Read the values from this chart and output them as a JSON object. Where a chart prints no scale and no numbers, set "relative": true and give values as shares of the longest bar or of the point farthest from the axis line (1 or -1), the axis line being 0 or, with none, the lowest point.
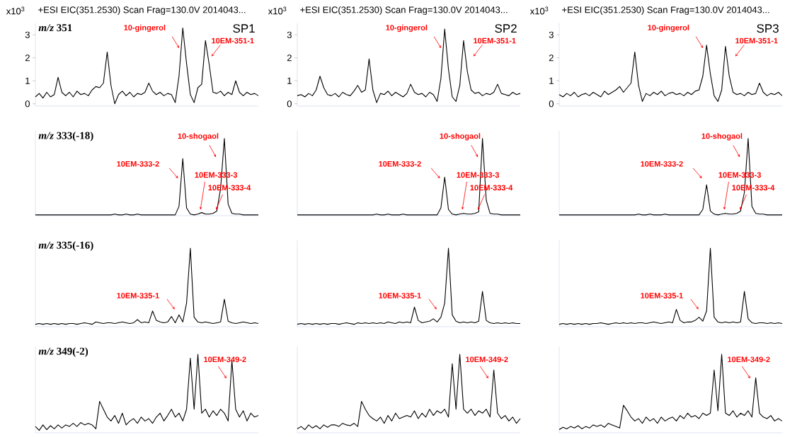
{
  "chart_data": [
    {
      "type": "line",
      "title": "+ESI EIC(351.2530) Scan Frag=130.0V 2014043...",
      "ylabel": "x10$^{3}$",
      "categories": [
        null,
        null,
        null,
        null,
        null,
        null,
        null,
        null,
        null,
        null,
        null,
        null,
        null,
        null,
        null,
        null,
        null,
        null,
        null,
        null,
        null,
        null,
        null,
        null,
        null,
        null,
        null,
        null,
        null,
        null,
        null,
        null,
        null,
        null,
        null,
        null,
        null,
        null,
        null,
        null,
        null,
        null,
        null,
        null,
        null,
        null,
        null,
        null,
        null,
        null,
        null,
        null,
        null,
        null,
        null,
        null,
        null,
        null,
        null,
        null
      ],
      "values": [
        0.3,
        0.45,
        0.25,
        0.5,
        0.3,
        0.4,
        1.15,
        0.5,
        0.35,
        0.5,
        0.3,
        0.55,
        0.4,
        0.45,
        0.35,
        0.6,
        0.75,
        0.7,
        0.9,
        2.25,
        0.8,
        0.0,
        0.4,
        0.55,
        0.35,
        0.5,
        0.3,
        0.45,
        0.4,
        0.5,
        0.9,
        0.55,
        0.4,
        0.5,
        0.35,
        0.45,
        0.4,
        0.05,
        1.2,
        3.3,
        1.75,
        0.4,
        0.05,
        0.7,
        0.85,
        2.75,
        1.7,
        0.5,
        0.45,
        0.55,
        0.35,
        0.5,
        0.4,
        1.0,
        0.5,
        0.35,
        0.5,
        0.4,
        0.45,
        0.35
      ],
      "color": "#000000",
      "ylim": [
        -0.1,
        3.5
      ],
      "yticks": [
        0,
        1,
        2,
        3
      ],
      "tick_labels": "y",
      "annotations": [
        "*m/z* 351",
        "SP1",
        "10-gingerol",
        "10EM-351-1"
      ]
    },
    {
      "type": "line",
      "title": "+ESI EIC(351.2530) Scan Frag=130.0V 2014043...",
      "ylabel": "x10$^{3}$",
      "categories": [
        null,
        null,
        null,
        null,
        null,
        null,
        null,
        null,
        null,
        null,
        null,
        null,
        null,
        null,
        null,
        null,
        null,
        null,
        null,
        null,
        null,
        null,
        null,
        null,
        null,
        null,
        null,
        null,
        null,
        null,
        null,
        null,
        null,
        null,
        null,
        null,
        null,
        null,
        null,
        null,
        null,
        null,
        null,
        null,
        null,
        null,
        null,
        null,
        null,
        null,
        null,
        null,
        null,
        null,
        null,
        null,
        null,
        null,
        null,
        null
      ],
      "values": [
        0.35,
        0.4,
        0.3,
        0.45,
        0.35,
        0.6,
        1.2,
        0.7,
        0.4,
        0.35,
        0.45,
        0.3,
        0.5,
        0.4,
        0.35,
        0.55,
        0.8,
        0.5,
        0.6,
        1.95,
        0.6,
        0.05,
        0.45,
        0.4,
        0.55,
        0.35,
        0.5,
        0.4,
        0.3,
        0.45,
        0.85,
        0.5,
        0.4,
        0.45,
        0.3,
        0.5,
        0.4,
        0.1,
        1.1,
        3.25,
        1.5,
        0.3,
        0.1,
        0.8,
        2.75,
        1.4,
        0.6,
        0.45,
        0.5,
        0.35,
        0.45,
        0.4,
        0.5,
        0.85,
        0.45,
        0.4,
        0.35,
        0.5,
        0.4,
        0.45
      ],
      "color": "#000000",
      "ylim": [
        -0.1,
        3.5
      ],
      "yticks": [
        0,
        1,
        2,
        3
      ],
      "tick_labels": "y",
      "annotations": [
        "SP2",
        "10-gingerol",
        "10EM-351-1"
      ]
    },
    {
      "type": "line",
      "title": "+ESI EIC(351.2530) Scan Frag=130.0V 2014043...",
      "ylabel": "x10$^{3}$",
      "categories": [
        null,
        null,
        null,
        null,
        null,
        null,
        null,
        null,
        null,
        null,
        null,
        null,
        null,
        null,
        null,
        null,
        null,
        null,
        null,
        null,
        null,
        null,
        null,
        null,
        null,
        null,
        null,
        null,
        null,
        null,
        null,
        null,
        null,
        null,
        null,
        null,
        null,
        null,
        null,
        null,
        null,
        null,
        null,
        null,
        null,
        null,
        null,
        null,
        null,
        null,
        null,
        null,
        null,
        null,
        null,
        null,
        null,
        null,
        null,
        null
      ],
      "values": [
        0.4,
        0.3,
        0.45,
        0.35,
        0.5,
        0.3,
        0.4,
        0.45,
        0.35,
        0.5,
        0.4,
        0.3,
        0.55,
        0.4,
        0.5,
        0.6,
        0.75,
        0.5,
        0.7,
        0.9,
        2.25,
        0.8,
        0.1,
        0.45,
        0.35,
        0.5,
        0.4,
        0.55,
        0.35,
        0.45,
        0.5,
        0.4,
        0.45,
        0.35,
        0.5,
        0.4,
        0.55,
        0.6,
        1.2,
        2.55,
        1.3,
        0.35,
        0.1,
        0.6,
        2.5,
        1.2,
        0.5,
        0.4,
        0.45,
        0.35,
        0.5,
        0.4,
        0.45,
        0.9,
        0.5,
        0.35,
        0.45,
        0.4,
        0.5,
        0.35
      ],
      "color": "#000000",
      "ylim": [
        -0.1,
        3.5
      ],
      "yticks": [
        0,
        1,
        2,
        3
      ],
      "tick_labels": "y",
      "annotations": [
        "SP3",
        "10-gingerol",
        "10EM-351-1"
      ]
    },
    {
      "type": "line",
      "categories": [
        null,
        null,
        null,
        null,
        null,
        null,
        null,
        null,
        null,
        null,
        null,
        null,
        null,
        null,
        null,
        null,
        null,
        null,
        null,
        null,
        null,
        null,
        null,
        null,
        null,
        null,
        null,
        null,
        null,
        null,
        null,
        null,
        null,
        null,
        null,
        null,
        null,
        null,
        null,
        null,
        null,
        null,
        null,
        null,
        null,
        null,
        null,
        null,
        null,
        null,
        null,
        null,
        null,
        null,
        null,
        null,
        null,
        null,
        null,
        null
      ],
      "values": [
        0.01,
        0.01,
        0.01,
        0.01,
        0.01,
        0.01,
        0.01,
        0.01,
        0.01,
        0.01,
        0.01,
        0.01,
        0.01,
        0.01,
        0.01,
        0.01,
        0.01,
        0.01,
        0.01,
        0.01,
        0.01,
        0.02,
        0.01,
        0.01,
        0.02,
        0.01,
        0.01,
        0.02,
        0.01,
        0.01,
        0.01,
        0.01,
        0.01,
        0.01,
        0.01,
        0.01,
        0.01,
        0.01,
        0.12,
        0.74,
        0.1,
        0.02,
        0.01,
        0.02,
        0.04,
        0.02,
        0.02,
        0.03,
        0.06,
        0.35,
        1.0,
        0.15,
        0.03,
        0.02,
        0.02,
        0.01,
        0.01,
        0.01,
        0.01,
        0.01
      ],
      "color": "#000000",
      "relative": true,
      "tick_labels": false,
      "annotations": [
        "*m/z* 333(-18)",
        "10-shogaol",
        "10EM-333-2",
        "10EM-333-3",
        "10EM-333-4"
      ]
    },
    {
      "type": "line",
      "categories": [
        null,
        null,
        null,
        null,
        null,
        null,
        null,
        null,
        null,
        null,
        null,
        null,
        null,
        null,
        null,
        null,
        null,
        null,
        null,
        null,
        null,
        null,
        null,
        null,
        null,
        null,
        null,
        null,
        null,
        null,
        null,
        null,
        null,
        null,
        null,
        null,
        null,
        null,
        null,
        null,
        null,
        null,
        null,
        null,
        null,
        null,
        null,
        null,
        null,
        null,
        null,
        null,
        null,
        null,
        null,
        null,
        null,
        null,
        null,
        null
      ],
      "values": [
        0.01,
        0.01,
        0.01,
        0.01,
        0.01,
        0.01,
        0.01,
        0.01,
        0.01,
        0.01,
        0.01,
        0.01,
        0.01,
        0.01,
        0.01,
        0.01,
        0.01,
        0.01,
        0.01,
        0.01,
        0.01,
        0.02,
        0.01,
        0.01,
        0.02,
        0.01,
        0.01,
        0.01,
        0.02,
        0.01,
        0.01,
        0.01,
        0.01,
        0.01,
        0.01,
        0.01,
        0.01,
        0.01,
        0.1,
        0.5,
        0.08,
        0.02,
        0.01,
        0.02,
        0.03,
        0.02,
        0.02,
        0.03,
        0.05,
        1.0,
        0.2,
        0.03,
        0.02,
        0.02,
        0.01,
        0.01,
        0.01,
        0.01,
        0.01,
        0.01
      ],
      "color": "#000000",
      "relative": true,
      "tick_labels": false,
      "annotations": [
        "10-shogaol",
        "10EM-333-2",
        "10EM-333-3",
        "10EM-333-4"
      ]
    },
    {
      "type": "line",
      "categories": [
        null,
        null,
        null,
        null,
        null,
        null,
        null,
        null,
        null,
        null,
        null,
        null,
        null,
        null,
        null,
        null,
        null,
        null,
        null,
        null,
        null,
        null,
        null,
        null,
        null,
        null,
        null,
        null,
        null,
        null,
        null,
        null,
        null,
        null,
        null,
        null,
        null,
        null,
        null,
        null,
        null,
        null,
        null,
        null,
        null,
        null,
        null,
        null,
        null,
        null,
        null,
        null,
        null,
        null,
        null,
        null,
        null,
        null,
        null,
        null
      ],
      "values": [
        0.01,
        0.01,
        0.01,
        0.01,
        0.01,
        0.01,
        0.01,
        0.01,
        0.01,
        0.01,
        0.01,
        0.01,
        0.01,
        0.01,
        0.01,
        0.01,
        0.01,
        0.01,
        0.01,
        0.01,
        0.01,
        0.02,
        0.01,
        0.01,
        0.02,
        0.01,
        0.01,
        0.01,
        0.02,
        0.01,
        0.01,
        0.01,
        0.01,
        0.01,
        0.01,
        0.01,
        0.01,
        0.01,
        0.08,
        0.4,
        0.06,
        0.02,
        0.01,
        0.02,
        0.03,
        0.02,
        0.02,
        0.03,
        0.06,
        0.3,
        1.0,
        0.12,
        0.03,
        0.02,
        0.02,
        0.01,
        0.01,
        0.01,
        0.01,
        0.01
      ],
      "color": "#000000",
      "relative": true,
      "tick_labels": false,
      "annotations": [
        "10-shogaol",
        "10EM-333-2",
        "10EM-333-3",
        "10EM-333-4"
      ]
    },
    {
      "type": "line",
      "categories": [
        null,
        null,
        null,
        null,
        null,
        null,
        null,
        null,
        null,
        null,
        null,
        null,
        null,
        null,
        null,
        null,
        null,
        null,
        null,
        null,
        null,
        null,
        null,
        null,
        null,
        null,
        null,
        null,
        null,
        null,
        null,
        null,
        null,
        null,
        null,
        null,
        null,
        null,
        null,
        null,
        null,
        null,
        null,
        null,
        null,
        null,
        null,
        null,
        null,
        null,
        null,
        null,
        null,
        null,
        null,
        null,
        null,
        null,
        null,
        null
      ],
      "values": [
        0.03,
        0.04,
        0.03,
        0.04,
        0.03,
        0.04,
        0.03,
        0.04,
        0.03,
        0.04,
        0.04,
        0.03,
        0.04,
        0.05,
        0.04,
        0.03,
        0.06,
        0.05,
        0.04,
        0.05,
        0.05,
        0.04,
        0.05,
        0.06,
        0.05,
        0.04,
        0.05,
        0.09,
        0.05,
        0.06,
        0.05,
        0.2,
        0.08,
        0.06,
        0.05,
        0.06,
        0.13,
        0.05,
        0.15,
        0.06,
        0.3,
        1.0,
        0.12,
        0.06,
        0.05,
        0.06,
        0.05,
        0.04,
        0.05,
        0.06,
        0.35,
        0.07,
        0.05,
        0.04,
        0.05,
        0.06,
        0.05,
        0.04,
        0.05,
        0.04
      ],
      "color": "#000000",
      "relative": true,
      "tick_labels": false,
      "annotations": [
        "*m/z* 335(-16)",
        "10EM-335-1"
      ]
    },
    {
      "type": "line",
      "categories": [
        null,
        null,
        null,
        null,
        null,
        null,
        null,
        null,
        null,
        null,
        null,
        null,
        null,
        null,
        null,
        null,
        null,
        null,
        null,
        null,
        null,
        null,
        null,
        null,
        null,
        null,
        null,
        null,
        null,
        null,
        null,
        null,
        null,
        null,
        null,
        null,
        null,
        null,
        null,
        null,
        null,
        null,
        null,
        null,
        null,
        null,
        null,
        null,
        null,
        null,
        null,
        null,
        null,
        null,
        null,
        null,
        null,
        null,
        null,
        null
      ],
      "values": [
        0.03,
        0.04,
        0.03,
        0.04,
        0.03,
        0.04,
        0.03,
        0.04,
        0.03,
        0.04,
        0.04,
        0.03,
        0.04,
        0.05,
        0.04,
        0.03,
        0.05,
        0.04,
        0.05,
        0.04,
        0.05,
        0.04,
        0.05,
        0.04,
        0.06,
        0.05,
        0.04,
        0.06,
        0.05,
        0.06,
        0.05,
        0.25,
        0.08,
        0.05,
        0.06,
        0.07,
        0.1,
        0.06,
        0.12,
        0.3,
        1.0,
        0.15,
        0.07,
        0.05,
        0.06,
        0.05,
        0.06,
        0.05,
        0.07,
        0.45,
        0.08,
        0.05,
        0.04,
        0.05,
        0.04,
        0.05,
        0.04,
        0.05,
        0.04,
        0.04
      ],
      "color": "#000000",
      "relative": true,
      "tick_labels": false,
      "annotations": [
        "10EM-335-1"
      ]
    },
    {
      "type": "line",
      "categories": [
        null,
        null,
        null,
        null,
        null,
        null,
        null,
        null,
        null,
        null,
        null,
        null,
        null,
        null,
        null,
        null,
        null,
        null,
        null,
        null,
        null,
        null,
        null,
        null,
        null,
        null,
        null,
        null,
        null,
        null,
        null,
        null,
        null,
        null,
        null,
        null,
        null,
        null,
        null,
        null,
        null,
        null,
        null,
        null,
        null,
        null,
        null,
        null,
        null,
        null,
        null,
        null,
        null,
        null,
        null,
        null,
        null,
        null,
        null,
        null
      ],
      "values": [
        0.03,
        0.04,
        0.03,
        0.04,
        0.03,
        0.04,
        0.03,
        0.04,
        0.03,
        0.04,
        0.04,
        0.05,
        0.04,
        0.03,
        0.04,
        0.05,
        0.04,
        0.05,
        0.04,
        0.05,
        0.04,
        0.05,
        0.05,
        0.04,
        0.05,
        0.06,
        0.05,
        0.04,
        0.05,
        0.06,
        0.05,
        0.22,
        0.08,
        0.05,
        0.06,
        0.06,
        0.08,
        0.12,
        0.07,
        0.2,
        1.0,
        0.12,
        0.06,
        0.05,
        0.06,
        0.05,
        0.06,
        0.05,
        0.06,
        0.45,
        0.1,
        0.05,
        0.04,
        0.05,
        0.05,
        0.04,
        0.05,
        0.04,
        0.05,
        0.04
      ],
      "color": "#000000",
      "relative": true,
      "tick_labels": false,
      "annotations": [
        "10EM-335-1"
      ]
    },
    {
      "type": "line",
      "categories": [
        null,
        null,
        null,
        null,
        null,
        null,
        null,
        null,
        null,
        null,
        null,
        null,
        null,
        null,
        null,
        null,
        null,
        null,
        null,
        null,
        null,
        null,
        null,
        null,
        null,
        null,
        null,
        null,
        null,
        null,
        null,
        null,
        null,
        null,
        null,
        null,
        null,
        null,
        null,
        null,
        null,
        null,
        null,
        null,
        null,
        null,
        null,
        null,
        null,
        null,
        null,
        null,
        null,
        null,
        null,
        null,
        null,
        null,
        null,
        null
      ],
      "values": [
        0.08,
        0.03,
        0.1,
        0.04,
        0.09,
        0.05,
        0.1,
        0.06,
        0.1,
        0.08,
        0.12,
        0.08,
        0.13,
        0.1,
        0.12,
        0.1,
        0.05,
        0.4,
        0.3,
        0.2,
        0.15,
        0.22,
        0.12,
        0.25,
        0.1,
        0.15,
        0.18,
        0.12,
        0.2,
        0.15,
        0.18,
        0.12,
        0.2,
        0.25,
        0.15,
        0.22,
        0.3,
        0.2,
        0.25,
        0.15,
        0.3,
        0.95,
        0.3,
        1.0,
        0.25,
        0.3,
        0.2,
        0.28,
        0.22,
        0.3,
        0.25,
        0.15,
        0.92,
        0.3,
        0.2,
        0.28,
        0.15,
        0.25,
        0.2,
        0.22
      ],
      "color": "#000000",
      "relative": true,
      "tick_labels": false,
      "annotations": [
        "*m/z* 349(-2)",
        "10EM-349-2"
      ]
    },
    {
      "type": "line",
      "categories": [
        null,
        null,
        null,
        null,
        null,
        null,
        null,
        null,
        null,
        null,
        null,
        null,
        null,
        null,
        null,
        null,
        null,
        null,
        null,
        null,
        null,
        null,
        null,
        null,
        null,
        null,
        null,
        null,
        null,
        null,
        null,
        null,
        null,
        null,
        null,
        null,
        null,
        null,
        null,
        null,
        null,
        null,
        null,
        null,
        null,
        null,
        null,
        null,
        null,
        null,
        null,
        null,
        null,
        null,
        null,
        null,
        null,
        null,
        null,
        null
      ],
      "values": [
        0.05,
        0.08,
        0.04,
        0.1,
        0.06,
        0.09,
        0.05,
        0.1,
        0.07,
        0.1,
        0.1,
        0.08,
        0.12,
        0.1,
        0.09,
        0.12,
        0.08,
        0.4,
        0.3,
        0.22,
        0.18,
        0.15,
        0.2,
        0.12,
        0.22,
        0.15,
        0.25,
        0.18,
        0.2,
        0.22,
        0.2,
        0.28,
        0.18,
        0.25,
        0.2,
        0.3,
        0.22,
        0.28,
        0.25,
        0.3,
        0.2,
        0.88,
        0.3,
        1.0,
        0.3,
        0.25,
        0.3,
        0.22,
        0.28,
        0.25,
        0.3,
        0.2,
        0.8,
        0.25,
        0.18,
        0.22,
        0.15,
        0.2,
        0.12,
        0.18
      ],
      "color": "#000000",
      "relative": true,
      "tick_labels": false,
      "annotations": [
        "10EM-349-2"
      ]
    },
    {
      "type": "line",
      "categories": [
        null,
        null,
        null,
        null,
        null,
        null,
        null,
        null,
        null,
        null,
        null,
        null,
        null,
        null,
        null,
        null,
        null,
        null,
        null,
        null,
        null,
        null,
        null,
        null,
        null,
        null,
        null,
        null,
        null,
        null,
        null,
        null,
        null,
        null,
        null,
        null,
        null,
        null,
        null,
        null,
        null,
        null,
        null,
        null,
        null,
        null,
        null,
        null,
        null,
        null,
        null,
        null,
        null,
        null,
        null,
        null,
        null,
        null,
        null,
        null
      ],
      "values": [
        0.04,
        0.07,
        0.05,
        0.08,
        0.06,
        0.09,
        0.05,
        0.08,
        0.06,
        0.1,
        0.08,
        0.1,
        0.07,
        0.12,
        0.1,
        0.08,
        0.06,
        0.35,
        0.28,
        0.2,
        0.15,
        0.18,
        0.12,
        0.2,
        0.15,
        0.18,
        0.12,
        0.2,
        0.15,
        0.18,
        0.2,
        0.15,
        0.22,
        0.18,
        0.25,
        0.2,
        0.22,
        0.18,
        0.25,
        0.22,
        0.25,
        0.8,
        0.28,
        1.0,
        0.25,
        0.22,
        0.28,
        0.2,
        0.25,
        0.22,
        0.28,
        0.2,
        0.7,
        0.25,
        0.2,
        0.18,
        0.22,
        0.15,
        0.18,
        0.15
      ],
      "color": "#000000",
      "relative": true,
      "tick_labels": false,
      "annotations": [
        "10EM-349-2"
      ]
    }
  ]
}
